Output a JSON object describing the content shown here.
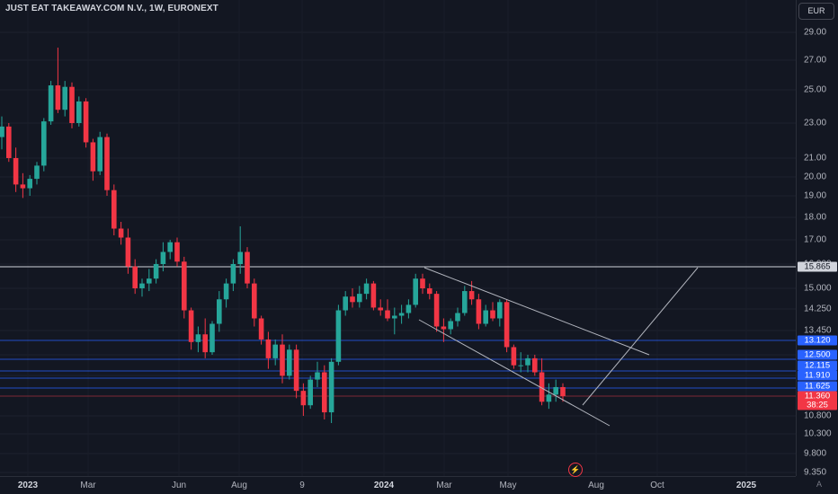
{
  "header": {
    "title": "JUST EAT TAKEAWAY.COM N.V., 1W, EURONEXT",
    "currency": "EUR"
  },
  "colors": {
    "background": "#131722",
    "up": "#26a69a",
    "down": "#f23645",
    "level_line": "#2962ff",
    "trend_line": "#b2b5be"
  },
  "price_axis": {
    "ticks": [
      "29.00",
      "27.00",
      "25.00",
      "23.00",
      "21.00",
      "20.00",
      "19.00",
      "18.00",
      "17.00",
      "16.000",
      "15.000",
      "14.250",
      "13.450",
      "12.500",
      "11.910",
      "11.360",
      "10.800",
      "10.300",
      "9.800",
      "9.350"
    ],
    "tags": [
      {
        "label": "15.865",
        "style": "white"
      },
      {
        "label": "13.120",
        "style": "blue"
      },
      {
        "label": "12.500",
        "style": "blue"
      },
      {
        "label": "12.115",
        "style": "blue"
      },
      {
        "label": "11.910",
        "style": "blue"
      },
      {
        "label": "11.625",
        "style": "blue"
      },
      {
        "label": "11.360",
        "style": "red"
      },
      {
        "label": "38:25",
        "style": "red"
      }
    ]
  },
  "time_axis": {
    "labels": [
      "2023",
      "Mar",
      "Jun",
      "Aug",
      "9",
      "2024",
      "Mar",
      "May",
      "Aug",
      "Oct",
      "2025"
    ],
    "auto_label": "A"
  },
  "chart_data": {
    "type": "candlestick",
    "title": "JUST EAT TAKEAWAY.COM N.V., 1W, EURONEXT",
    "interval": "1W",
    "exchange": "EURONEXT",
    "currency": "EUR",
    "ylim": [
      9.2,
      30.5
    ],
    "y_scale": "log",
    "x_labels": [
      "2023",
      "Mar",
      "Jun",
      "Aug",
      "9",
      "2024",
      "Mar",
      "May",
      "Aug",
      "Oct",
      "2025"
    ],
    "horizontal_levels": [
      15.865,
      13.12,
      12.5,
      12.115,
      11.91,
      11.625,
      11.36
    ],
    "last_price": 11.36,
    "countdown": "38:25",
    "candles_approx_weekly": [
      [
        22.2,
        23.4,
        21.5,
        22.8
      ],
      [
        22.8,
        23.0,
        20.8,
        21.0
      ],
      [
        21.0,
        21.6,
        19.2,
        19.6
      ],
      [
        19.6,
        20.2,
        18.9,
        19.4
      ],
      [
        19.4,
        20.1,
        19.0,
        19.9
      ],
      [
        19.9,
        20.8,
        19.6,
        20.6
      ],
      [
        20.6,
        23.3,
        20.3,
        23.1
      ],
      [
        23.1,
        25.6,
        22.9,
        25.3
      ],
      [
        25.3,
        27.9,
        23.6,
        23.8
      ],
      [
        23.8,
        25.6,
        23.4,
        25.2
      ],
      [
        25.2,
        25.5,
        22.7,
        23.0
      ],
      [
        23.0,
        24.6,
        22.8,
        24.3
      ],
      [
        24.3,
        24.5,
        21.6,
        21.9
      ],
      [
        21.9,
        22.1,
        19.8,
        20.3
      ],
      [
        20.3,
        22.5,
        20.1,
        22.2
      ],
      [
        22.2,
        22.4,
        19.0,
        19.3
      ],
      [
        19.3,
        19.6,
        17.2,
        17.5
      ],
      [
        17.5,
        17.8,
        16.8,
        17.1
      ],
      [
        17.1,
        17.5,
        15.6,
        15.9
      ],
      [
        15.9,
        16.2,
        14.8,
        15.0
      ],
      [
        15.0,
        15.4,
        14.7,
        15.2
      ],
      [
        15.2,
        15.8,
        14.9,
        15.4
      ],
      [
        15.4,
        16.2,
        15.2,
        16.0
      ],
      [
        16.0,
        16.9,
        15.7,
        16.5
      ],
      [
        16.5,
        17.0,
        16.2,
        16.9
      ],
      [
        16.9,
        17.1,
        15.9,
        16.1
      ],
      [
        16.1,
        16.3,
        13.9,
        14.2
      ],
      [
        14.2,
        14.3,
        12.7,
        13.0
      ],
      [
        13.0,
        13.6,
        12.6,
        13.3
      ],
      [
        13.3,
        13.9,
        12.4,
        12.6
      ],
      [
        12.6,
        13.8,
        12.5,
        13.7
      ],
      [
        13.7,
        14.9,
        13.4,
        14.6
      ],
      [
        14.6,
        15.4,
        14.3,
        15.2
      ],
      [
        15.2,
        16.2,
        14.9,
        16.0
      ],
      [
        16.0,
        17.6,
        15.6,
        16.5
      ],
      [
        16.5,
        16.7,
        15.0,
        15.2
      ],
      [
        15.2,
        15.4,
        13.6,
        13.9
      ],
      [
        13.9,
        14.0,
        12.9,
        13.1
      ],
      [
        13.1,
        13.4,
        12.1,
        12.4
      ],
      [
        12.4,
        13.1,
        12.2,
        12.9
      ],
      [
        12.9,
        13.3,
        11.7,
        11.9
      ],
      [
        11.9,
        12.9,
        11.8,
        12.7
      ],
      [
        12.7,
        12.9,
        11.3,
        11.5
      ],
      [
        11.5,
        11.7,
        10.8,
        11.1
      ],
      [
        11.1,
        11.9,
        11.0,
        11.8
      ],
      [
        11.8,
        12.3,
        11.6,
        12.0
      ],
      [
        12.0,
        12.2,
        10.7,
        10.9
      ],
      [
        10.9,
        12.4,
        10.6,
        12.3
      ],
      [
        12.3,
        14.4,
        12.2,
        14.2
      ],
      [
        14.2,
        14.9,
        14.0,
        14.7
      ],
      [
        14.7,
        15.0,
        14.3,
        14.5
      ],
      [
        14.5,
        15.1,
        14.3,
        14.8
      ],
      [
        14.8,
        15.4,
        14.6,
        15.2
      ],
      [
        15.2,
        15.3,
        14.2,
        14.3
      ],
      [
        14.3,
        14.6,
        14.0,
        14.2
      ],
      [
        14.2,
        14.6,
        13.8,
        13.9
      ],
      [
        13.9,
        14.3,
        13.3,
        14.0
      ],
      [
        14.0,
        14.4,
        13.7,
        14.1
      ],
      [
        14.1,
        14.6,
        13.9,
        14.4
      ],
      [
        14.4,
        15.6,
        14.3,
        15.4
      ],
      [
        15.4,
        15.6,
        14.8,
        15.0
      ],
      [
        15.0,
        15.2,
        14.6,
        14.8
      ],
      [
        14.8,
        14.9,
        13.4,
        13.6
      ],
      [
        13.6,
        13.9,
        13.0,
        13.5
      ],
      [
        13.5,
        13.9,
        13.3,
        13.8
      ],
      [
        13.8,
        14.3,
        13.6,
        14.1
      ],
      [
        14.1,
        15.1,
        14.0,
        14.9
      ],
      [
        14.9,
        15.3,
        14.4,
        14.6
      ],
      [
        14.6,
        14.8,
        13.5,
        13.7
      ],
      [
        13.7,
        14.4,
        13.6,
        14.2
      ],
      [
        14.2,
        14.5,
        13.8,
        13.9
      ],
      [
        13.9,
        14.6,
        13.6,
        14.5
      ],
      [
        14.5,
        14.6,
        12.6,
        12.8
      ],
      [
        12.8,
        12.9,
        12.1,
        12.2
      ],
      [
        12.2,
        12.6,
        12.0,
        12.2
      ],
      [
        12.2,
        12.5,
        12.0,
        12.4
      ],
      [
        12.4,
        12.5,
        11.9,
        12.0
      ],
      [
        12.0,
        12.4,
        11.1,
        11.2
      ],
      [
        11.2,
        11.7,
        11.0,
        11.4
      ],
      [
        11.4,
        11.8,
        11.2,
        11.6
      ],
      [
        11.6,
        11.7,
        11.2,
        11.36
      ]
    ]
  }
}
